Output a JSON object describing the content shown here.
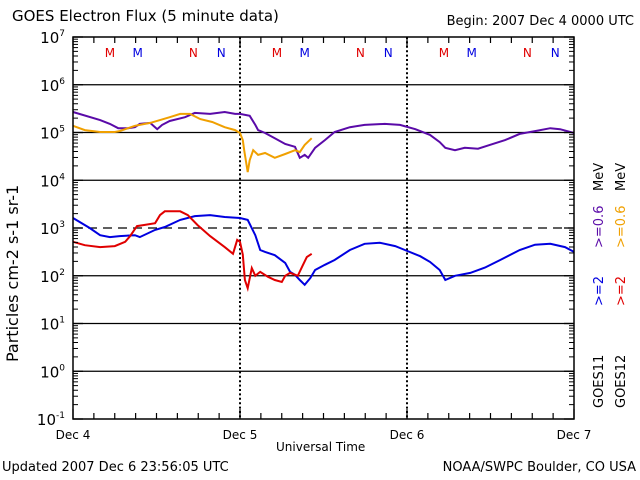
{
  "header": {
    "title": "GOES Electron Flux (5 minute data)",
    "begin": "Begin: 2007 Dec 4 0000 UTC"
  },
  "footer": {
    "updated": "Updated 2007 Dec  6 23:56:05 UTC",
    "credit": "NOAA/SWPC Boulder, CO USA"
  },
  "chart_data": {
    "type": "line",
    "title": "GOES Electron Flux (5 minute data)",
    "xlabel": "Universal Time",
    "ylabel": "Particles cm-2 s-1 sr-1",
    "yscale": "log",
    "ylim_log10": [
      -1,
      7
    ],
    "xlim_hours": [
      0,
      72
    ],
    "x_ticks": [
      {
        "hour": 0,
        "label": "Dec 4"
      },
      {
        "hour": 24,
        "label": "Dec 5"
      },
      {
        "hour": 48,
        "label": "Dec 6"
      },
      {
        "hour": 72,
        "label": "Dec 7"
      }
    ],
    "y_ticks": [
      {
        "exp": 7,
        "base": "10",
        "sup": "7"
      },
      {
        "exp": 6,
        "base": "10",
        "sup": "6"
      },
      {
        "exp": 5,
        "base": "10",
        "sup": "5"
      },
      {
        "exp": 4,
        "base": "10",
        "sup": "4"
      },
      {
        "exp": 3,
        "base": "10",
        "sup": "3"
      },
      {
        "exp": 2,
        "base": "10",
        "sup": "2"
      },
      {
        "exp": 1,
        "base": "10",
        "sup": "1"
      },
      {
        "exp": 0,
        "base": "10",
        "sup": "0"
      },
      {
        "exp": -1,
        "base": "10",
        "sup": "-1"
      }
    ],
    "grid": "horizontal solid lines at each decade; dashed threshold at 10^3; dotted vertical day boundaries",
    "threshold_log10": 3,
    "local_time_markers": [
      {
        "hour": 5.3,
        "label": "M",
        "color": "#e00000"
      },
      {
        "hour": 9.3,
        "label": "M",
        "color": "#0000e0"
      },
      {
        "hour": 17.3,
        "label": "N",
        "color": "#e00000"
      },
      {
        "hour": 21.3,
        "label": "N",
        "color": "#0000e0"
      },
      {
        "hour": 29.3,
        "label": "M",
        "color": "#e00000"
      },
      {
        "hour": 33.3,
        "label": "M",
        "color": "#0000e0"
      },
      {
        "hour": 41.3,
        "label": "N",
        "color": "#e00000"
      },
      {
        "hour": 45.3,
        "label": "N",
        "color": "#0000e0"
      },
      {
        "hour": 53.3,
        "label": "M",
        "color": "#e00000"
      },
      {
        "hour": 57.3,
        "label": "M",
        "color": "#0000e0"
      },
      {
        "hour": 65.3,
        "label": "N",
        "color": "#e00000"
      },
      {
        "hour": 69.3,
        "label": "N",
        "color": "#0000e0"
      }
    ],
    "legend": {
      "placement": "right-vertical",
      "satellites": [
        {
          "name": "GOES11",
          "entries": [
            {
              "label": ">=2",
              "color": "#0000e0"
            },
            {
              "label": ">=0.6",
              "color": "#5a0aa8"
            },
            {
              "label": "MeV",
              "color": "#000000"
            }
          ]
        },
        {
          "name": "GOES12",
          "entries": [
            {
              "label": ">=2",
              "color": "#e00000"
            },
            {
              "label": ">=0.6",
              "color": "#f0a000"
            },
            {
              "label": "MeV",
              "color": "#000000"
            }
          ]
        }
      ]
    },
    "series": [
      {
        "name": "GOES11 >=0.6 MeV",
        "color": "#5a0aa8",
        "x_hours": [
          0,
          3.9,
          5.3,
          6.5,
          7.9,
          8.9,
          9.6,
          11.1,
          12.1,
          12.8,
          13.9,
          16.1,
          17.5,
          19.7,
          21.8,
          23.3,
          24,
          25.4,
          26.2,
          26.6,
          27.6,
          29,
          30.5,
          31.9,
          32.6,
          33.3,
          33.8,
          34.8,
          36.2,
          37.6,
          39.8,
          41.9,
          44.8,
          47,
          49.2,
          51.3,
          52.7,
          53.5,
          54.9,
          56.3,
          58.2,
          59.9,
          62.1,
          64.2,
          66.4,
          68.6,
          70,
          72
        ],
        "log10_flux": [
          5.43,
          5.26,
          5.18,
          5.09,
          5.09,
          5.11,
          5.18,
          5.2,
          5.07,
          5.16,
          5.24,
          5.32,
          5.41,
          5.39,
          5.43,
          5.39,
          5.39,
          5.35,
          5.16,
          5.05,
          4.99,
          4.88,
          4.76,
          4.7,
          4.47,
          4.53,
          4.47,
          4.68,
          4.84,
          5.01,
          5.11,
          5.16,
          5.18,
          5.16,
          5.07,
          4.95,
          4.8,
          4.68,
          4.63,
          4.68,
          4.66,
          4.74,
          4.84,
          4.97,
          5.03,
          5.09,
          5.07,
          4.99
        ]
      },
      {
        "name": "GOES12 >=0.6 MeV",
        "color": "#f0a000",
        "x_hours": [
          0,
          1.7,
          3.9,
          6,
          6.7,
          7.5,
          8.9,
          11.1,
          12.5,
          13.9,
          15.4,
          16.8,
          18.3,
          20,
          21.8,
          23.3,
          24,
          24.4,
          24.6,
          25.1,
          25.4,
          25.9,
          26.6,
          27.6,
          29,
          30.5,
          31.9,
          32.6,
          33.3,
          34.3
        ],
        "log10_flux": [
          5.14,
          5.05,
          5.01,
          5.01,
          5.03,
          5.07,
          5.14,
          5.2,
          5.26,
          5.32,
          5.39,
          5.39,
          5.28,
          5.22,
          5.11,
          5.05,
          4.99,
          4.84,
          4.63,
          4.17,
          4.42,
          4.63,
          4.53,
          4.57,
          4.47,
          4.55,
          4.63,
          4.59,
          4.74,
          4.88
        ]
      },
      {
        "name": "GOES11 >=2 MeV",
        "color": "#0000e0",
        "x_hours": [
          0,
          2.4,
          3.9,
          5.3,
          6.7,
          8.9,
          9.6,
          11.8,
          13.2,
          15.4,
          17.5,
          19.7,
          21.8,
          24,
          25.1,
          26.2,
          26.9,
          27.6,
          29,
          30.5,
          31.2,
          31.9,
          32.6,
          33.3,
          34.1,
          34.8,
          36.2,
          37.6,
          39.8,
          41.9,
          44.1,
          46.3,
          47.7,
          49.9,
          51.3,
          52.7,
          53.5,
          54.9,
          57.1,
          59.2,
          61.4,
          64.2,
          66.4,
          68.6,
          70.7,
          72
        ],
        "log10_flux": [
          3.21,
          3.0,
          2.85,
          2.81,
          2.83,
          2.85,
          2.81,
          2.96,
          3.02,
          3.17,
          3.25,
          3.27,
          3.23,
          3.21,
          3.17,
          2.85,
          2.54,
          2.5,
          2.43,
          2.27,
          2.08,
          2.02,
          1.91,
          1.81,
          1.95,
          2.12,
          2.23,
          2.33,
          2.54,
          2.67,
          2.69,
          2.62,
          2.54,
          2.41,
          2.29,
          2.12,
          1.91,
          2.0,
          2.06,
          2.17,
          2.33,
          2.54,
          2.65,
          2.67,
          2.6,
          2.5
        ]
      },
      {
        "name": "GOES12 >=2 MeV",
        "color": "#e00000",
        "x_hours": [
          0,
          1.7,
          3.9,
          6,
          7.5,
          8.2,
          9.2,
          10.1,
          11.8,
          12.5,
          13.2,
          15.4,
          16.5,
          17.9,
          19.7,
          21.8,
          23,
          23.6,
          24,
          24.4,
          24.7,
          25.1,
          25.7,
          26.2,
          26.9,
          28,
          29,
          30,
          30.5,
          31.2,
          32.3,
          33,
          33.6,
          34.3
        ],
        "log10_flux": [
          2.71,
          2.64,
          2.6,
          2.62,
          2.71,
          2.83,
          3.04,
          3.06,
          3.1,
          3.27,
          3.35,
          3.35,
          3.27,
          3.06,
          2.83,
          2.6,
          2.46,
          2.75,
          2.71,
          2.44,
          1.91,
          1.74,
          2.16,
          2.0,
          2.08,
          1.98,
          1.91,
          1.87,
          2.0,
          2.06,
          2.0,
          2.21,
          2.39,
          2.46
        ]
      }
    ]
  }
}
